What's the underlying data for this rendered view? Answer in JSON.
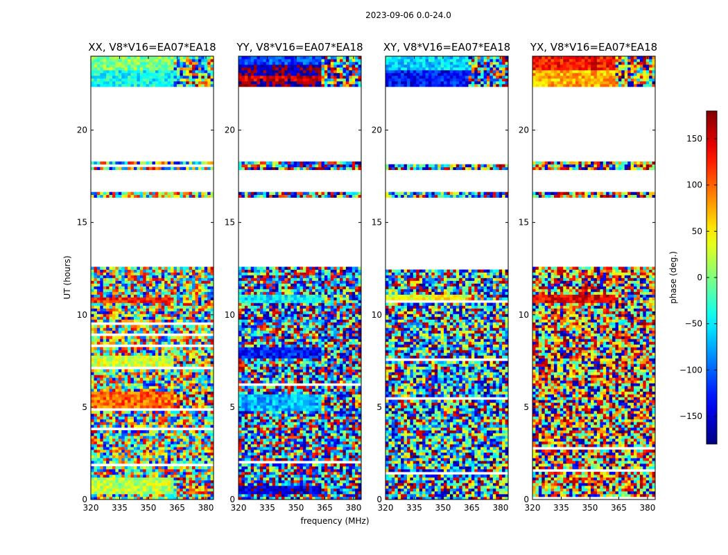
{
  "chart_data": {
    "type": "heatmap",
    "suptitle": "2023-09-06 0.0-24.0",
    "xlabel": "frequency (MHz)",
    "ylabel": "UT (hours)",
    "xlim": [
      320,
      384
    ],
    "ylim": [
      0,
      24
    ],
    "xticks": [
      "320",
      "335",
      "350",
      "365",
      "380"
    ],
    "xtick_values": [
      320,
      335,
      350,
      365,
      380
    ],
    "yticks": [
      "0",
      "5",
      "10",
      "15",
      "20"
    ],
    "ytick_values": [
      0,
      5,
      10,
      15,
      20
    ],
    "colorbar": {
      "label": "phase (deg.)",
      "range": [
        -180,
        180
      ],
      "ticks": [
        "−150",
        "−100",
        "−50",
        "0",
        "50",
        "100",
        "150"
      ],
      "tick_values": [
        -150,
        -100,
        -50,
        0,
        50,
        100,
        150
      ],
      "colormap": "jet"
    },
    "data_present_ut_ranges": [
      [
        0,
        12.6
      ],
      [
        16.3,
        16.7
      ],
      [
        17.9,
        18.3
      ],
      [
        22.3,
        24
      ]
    ],
    "panels": [
      {
        "title": "XX, V8*V16=EA07*EA18",
        "pol": "XX",
        "mean_phase": 5,
        "structure": [
          {
            "ut": [
              23.2,
              24.0
            ],
            "phase": 0
          },
          {
            "ut": [
              22.3,
              23.2
            ],
            "phase": -40
          },
          {
            "ut": [
              10.6,
              11.0
            ],
            "phase": 120
          },
          {
            "ut": [
              7.2,
              7.8
            ],
            "phase": 30
          },
          {
            "ut": [
              4.8,
              5.8
            ],
            "phase": 100
          },
          {
            "ut": [
              0.3,
              1.2
            ],
            "phase": 20
          }
        ]
      },
      {
        "title": "YY, V8*V16=EA07*EA18",
        "pol": "YY",
        "mean_phase": -110,
        "structure": [
          {
            "ut": [
              23.5,
              24.0
            ],
            "phase": -110
          },
          {
            "ut": [
              23.0,
              23.5
            ],
            "phase": -170
          },
          {
            "ut": [
              22.6,
              23.0
            ],
            "phase": 150
          },
          {
            "ut": [
              22.3,
              22.6
            ],
            "phase": -175
          },
          {
            "ut": [
              10.6,
              11.1
            ],
            "phase": -50
          },
          {
            "ut": [
              7.6,
              8.3
            ],
            "phase": -130
          },
          {
            "ut": [
              4.8,
              5.7
            ],
            "phase": -70
          },
          {
            "ut": [
              0.3,
              0.8
            ],
            "phase": -150
          }
        ]
      },
      {
        "title": "XY, V8*V16=EA07*EA18",
        "pol": "XY",
        "mean_phase": -80,
        "structure": [
          {
            "ut": [
              23.2,
              24.0
            ],
            "phase": -60
          },
          {
            "ut": [
              22.3,
              23.2
            ],
            "phase": -130
          },
          {
            "ut": [
              10.7,
              11.1
            ],
            "phase": 40
          }
        ]
      },
      {
        "title": "YX, V8*V16=EA07*EA18",
        "pol": "YX",
        "mean_phase": 90,
        "structure": [
          {
            "ut": [
              23.2,
              24.0
            ],
            "phase": 130
          },
          {
            "ut": [
              22.3,
              23.2
            ],
            "phase": 70
          },
          {
            "ut": [
              10.6,
              11.1
            ],
            "phase": 140
          }
        ]
      }
    ]
  }
}
